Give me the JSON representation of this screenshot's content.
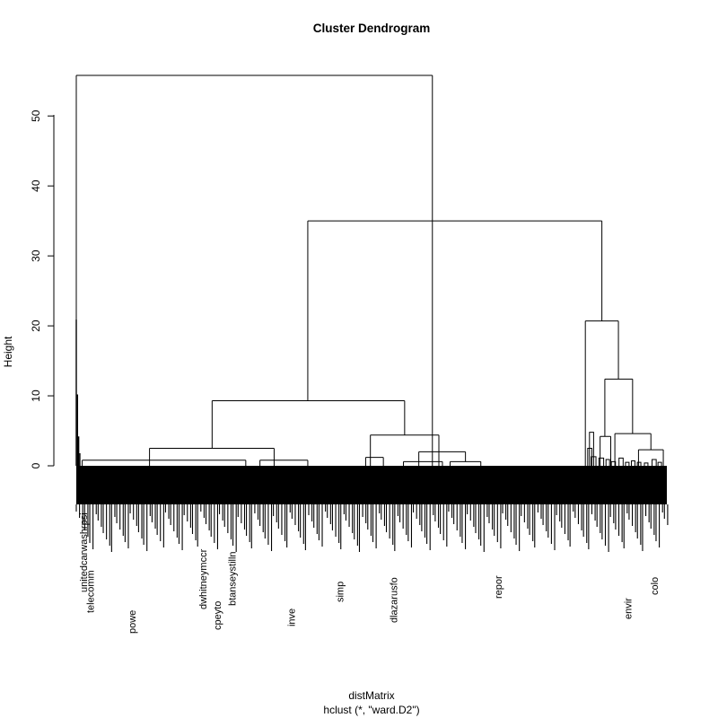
{
  "chart_data": {
    "type": "dendrogram",
    "title": "Cluster Dendrogram",
    "ylabel": "Height",
    "xlabel": "distMatrix",
    "sublabel": "hclust (*, \"ward.D2\")",
    "ylim": [
      0,
      55.8
    ],
    "y_ticks": [
      0,
      10,
      20,
      30,
      40,
      50
    ],
    "merges": [
      {
        "height": 55.8,
        "left": 0.0,
        "right": 0.603
      },
      {
        "height": 35.0,
        "left": 0.392,
        "right": 0.89
      },
      {
        "height": 20.7,
        "left": 0.862,
        "right": 0.918
      },
      {
        "height": 12.4,
        "left": 0.895,
        "right": 0.942
      },
      {
        "height": 9.3,
        "left": 0.23,
        "right": 0.556
      },
      {
        "height": 4.6,
        "left": 0.912,
        "right": 0.973
      },
      {
        "height": 4.4,
        "left": 0.498,
        "right": 0.614
      },
      {
        "height": 4.2,
        "left": 0.887,
        "right": 0.905
      },
      {
        "height": 2.5,
        "left": 0.124,
        "right": 0.335
      },
      {
        "height": 2.3,
        "left": 0.952,
        "right": 0.994
      },
      {
        "height": 2.0,
        "left": 0.58,
        "right": 0.659
      },
      {
        "height": 1.2,
        "left": 0.49,
        "right": 0.52
      },
      {
        "height": 0.8,
        "left": 0.01,
        "right": 0.287
      },
      {
        "height": 0.8,
        "left": 0.311,
        "right": 0.392
      },
      {
        "height": 0.6,
        "left": 0.554,
        "right": 0.62
      },
      {
        "height": 0.6,
        "left": 0.633,
        "right": 0.685
      }
    ],
    "visible_leaf_labels": [
      "unitedcarwashrpsi",
      "telecomm",
      "powe",
      "dwhitneymccr",
      "cpeyto",
      "btanseystilln",
      "inve",
      "simp",
      "dlazarusfo",
      "repor",
      "envir",
      "colo"
    ]
  }
}
